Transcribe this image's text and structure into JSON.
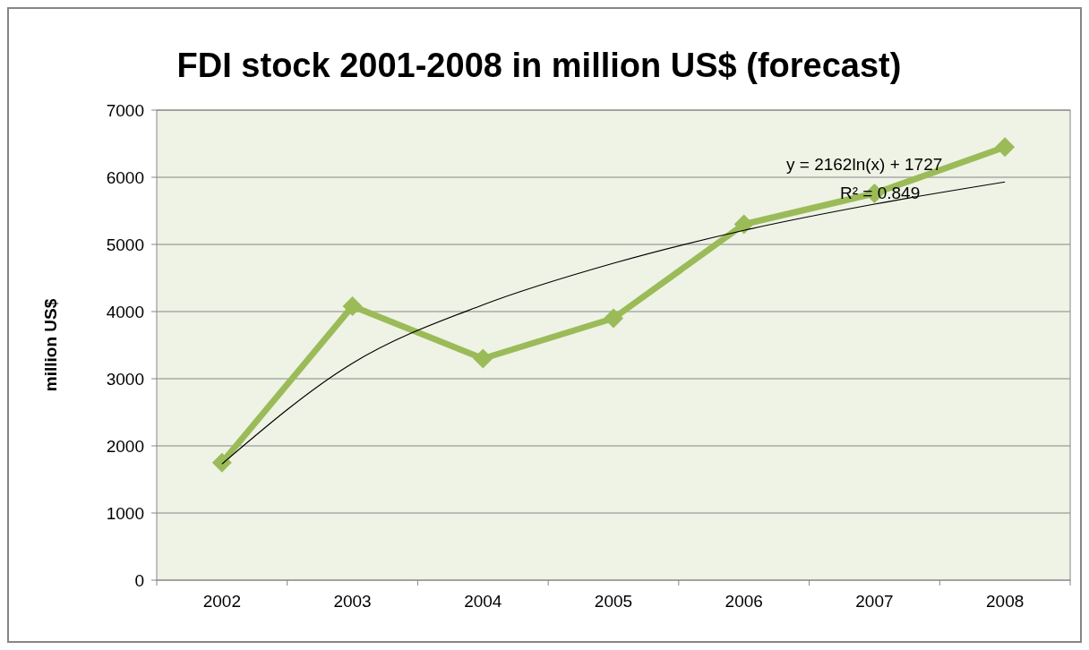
{
  "chart_data": {
    "type": "line",
    "title": "FDI stock 2001-2008 in million US$ (forecast)",
    "ylabel": "million US$",
    "categories": [
      "2002",
      "2003",
      "2004",
      "2005",
      "2006",
      "2007",
      "2008"
    ],
    "series": [
      {
        "color": "#9bbb59",
        "marker": "diamond",
        "values": [
          1750,
          4080,
          3300,
          3900,
          5300,
          5760,
          6450
        ]
      },
      {
        "color": "#000000",
        "marker": "none",
        "values": [
          1730,
          3230,
          4100,
          4720,
          5210,
          5600,
          5930
        ]
      }
    ],
    "annotations": [
      "y = 2162ln(x) + 1727",
      "R² = 0.849"
    ],
    "ylim": [
      0,
      7000
    ],
    "yticks": [
      0,
      1000,
      2000,
      3000,
      4000,
      5000,
      6000,
      7000
    ],
    "grid": "y"
  }
}
